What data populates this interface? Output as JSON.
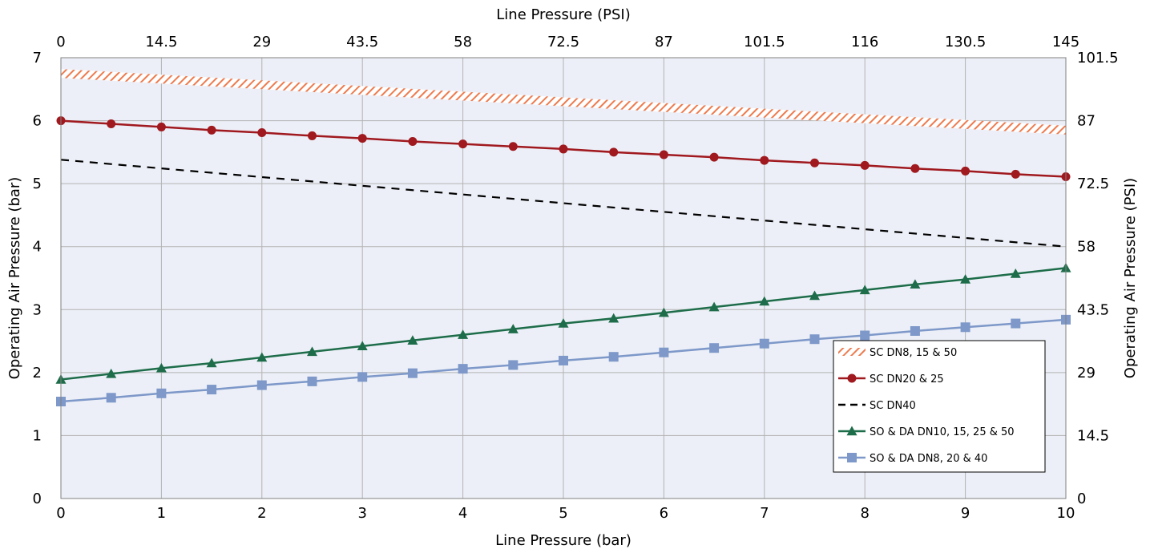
{
  "chart_data": {
    "type": "line",
    "xlabel": "Line Pressure (bar)",
    "x2label": "Line Pressure (PSI)",
    "ylabel": "Operating Air Pressure (bar)",
    "y2label": "Operating Air Pressure (PSI)",
    "xlim": [
      0,
      10
    ],
    "ylim": [
      0,
      7
    ],
    "x_ticks": [
      "0",
      "1",
      "2",
      "3",
      "4",
      "5",
      "6",
      "7",
      "8",
      "9",
      "10"
    ],
    "x2_ticks": [
      "0",
      "14.5",
      "29",
      "43.5",
      "58",
      "72.5",
      "87",
      "101.5",
      "116",
      "130.5",
      "145"
    ],
    "y_ticks": [
      "0",
      "1",
      "2",
      "3",
      "4",
      "5",
      "6",
      "7"
    ],
    "y2_ticks": [
      "0",
      "14.5",
      "29",
      "43.5",
      "58",
      "72.5",
      "87",
      "101.5"
    ],
    "grid": true,
    "legend_position": "bottom-right",
    "colors": {
      "background": "#eceff7",
      "grid": "#b3b3b3",
      "sc_dn8": "#ed7b4f",
      "sc_dn20": "#a0191f",
      "sc_dn40": "#000000",
      "so_da_dn10": "#1e6d4a",
      "so_da_dn8": "#7d98c9"
    },
    "series": [
      {
        "name": "SC DN8, 15 & 50",
        "style": "hatched-band",
        "x": [
          0,
          10
        ],
        "y": [
          6.75,
          5.85
        ],
        "band_half_width": 0.07
      },
      {
        "name": "SC DN20 & 25",
        "style": "line-circle",
        "x": [
          0,
          0.5,
          1,
          1.5,
          2,
          2.5,
          3,
          3.5,
          4,
          4.5,
          5,
          5.5,
          6,
          6.5,
          7,
          7.5,
          8,
          8.5,
          9,
          9.5,
          10
        ],
        "y": [
          6.0,
          5.95,
          5.9,
          5.85,
          5.81,
          5.76,
          5.72,
          5.67,
          5.63,
          5.59,
          5.55,
          5.5,
          5.46,
          5.42,
          5.37,
          5.33,
          5.29,
          5.24,
          5.2,
          5.15,
          5.11
        ]
      },
      {
        "name": "SC DN40",
        "style": "dashed",
        "x": [
          0,
          10
        ],
        "y": [
          5.38,
          4.0
        ]
      },
      {
        "name": "SO & DA DN10, 15, 25 & 50",
        "style": "line-triangle",
        "x": [
          0,
          0.5,
          1,
          1.5,
          2,
          2.5,
          3,
          3.5,
          4,
          4.5,
          5,
          5.5,
          6,
          6.5,
          7,
          7.5,
          8,
          8.5,
          9,
          9.5,
          10
        ],
        "y": [
          1.89,
          1.98,
          2.07,
          2.15,
          2.24,
          2.33,
          2.42,
          2.51,
          2.6,
          2.69,
          2.78,
          2.86,
          2.95,
          3.04,
          3.13,
          3.22,
          3.31,
          3.4,
          3.48,
          3.57,
          3.66
        ]
      },
      {
        "name": "SO & DA DN8, 20 & 40",
        "style": "line-square",
        "x": [
          0,
          0.5,
          1,
          1.5,
          2,
          2.5,
          3,
          3.5,
          4,
          4.5,
          5,
          5.5,
          6,
          6.5,
          7,
          7.5,
          8,
          8.5,
          9,
          9.5,
          10
        ],
        "y": [
          1.54,
          1.6,
          1.67,
          1.73,
          1.8,
          1.86,
          1.93,
          1.99,
          2.06,
          2.12,
          2.19,
          2.25,
          2.32,
          2.39,
          2.46,
          2.53,
          2.59,
          2.66,
          2.72,
          2.78,
          2.84
        ]
      }
    ]
  }
}
